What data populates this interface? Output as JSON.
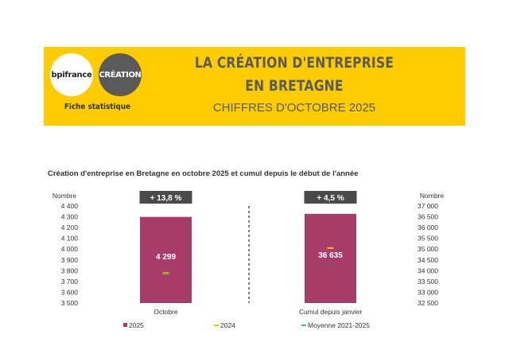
{
  "header": {
    "logo_left": "bpifrance",
    "logo_right": "CRÉATION",
    "subtitle": "Fiche statistique",
    "title_line1": "LA CRÉATION D'ENTREPRISE",
    "title_line2": "EN BRETAGNE",
    "period": "CHIFFRES D'OCTOBRE 2025"
  },
  "colors": {
    "banner": "#ffcc00",
    "bar_2025": "#a83c68",
    "marker_2024": "#ffc000",
    "marker_avg": "#4bacc6",
    "badge": "#4a4a4a"
  },
  "chart_data": [
    {
      "type": "bar",
      "title": "Création d'entreprise en Bretagne en octobre 2025 et cumul depuis le début de l'année",
      "categories": [
        "Octobre"
      ],
      "ylabel": "Nombre",
      "ylim": [
        3500,
        4400
      ],
      "yticks": [
        "3 500",
        "3 600",
        "3 700",
        "3 800",
        "3 900",
        "4 000",
        "4 100",
        "4 200",
        "4 300",
        "4 400"
      ],
      "series": [
        {
          "name": "2025",
          "values": [
            4299
          ],
          "label": "4 299"
        },
        {
          "name": "2024",
          "values": [
            3778
          ]
        },
        {
          "name": "Moyenne 2021-2025",
          "values": [
            3770
          ]
        }
      ],
      "change_badge": "+ 13,8 %"
    },
    {
      "type": "bar",
      "categories": [
        "Cumul depuis janvier"
      ],
      "ylabel": "Nombre",
      "ylim": [
        32500,
        37000
      ],
      "yticks": [
        "32 500",
        "33 000",
        "33 500",
        "34 000",
        "34 500",
        "35 000",
        "35 500",
        "36 000",
        "36 500",
        "37 000"
      ],
      "series": [
        {
          "name": "2025",
          "values": [
            36635
          ],
          "label": "36 635"
        },
        {
          "name": "2024",
          "values": [
            35050
          ]
        },
        {
          "name": "Moyenne 2021-2025",
          "values": [
            34250
          ]
        }
      ],
      "change_badge": "+ 4,5 %"
    }
  ],
  "legend": [
    "2025",
    "2024",
    "Moyenne 2021-2025"
  ]
}
